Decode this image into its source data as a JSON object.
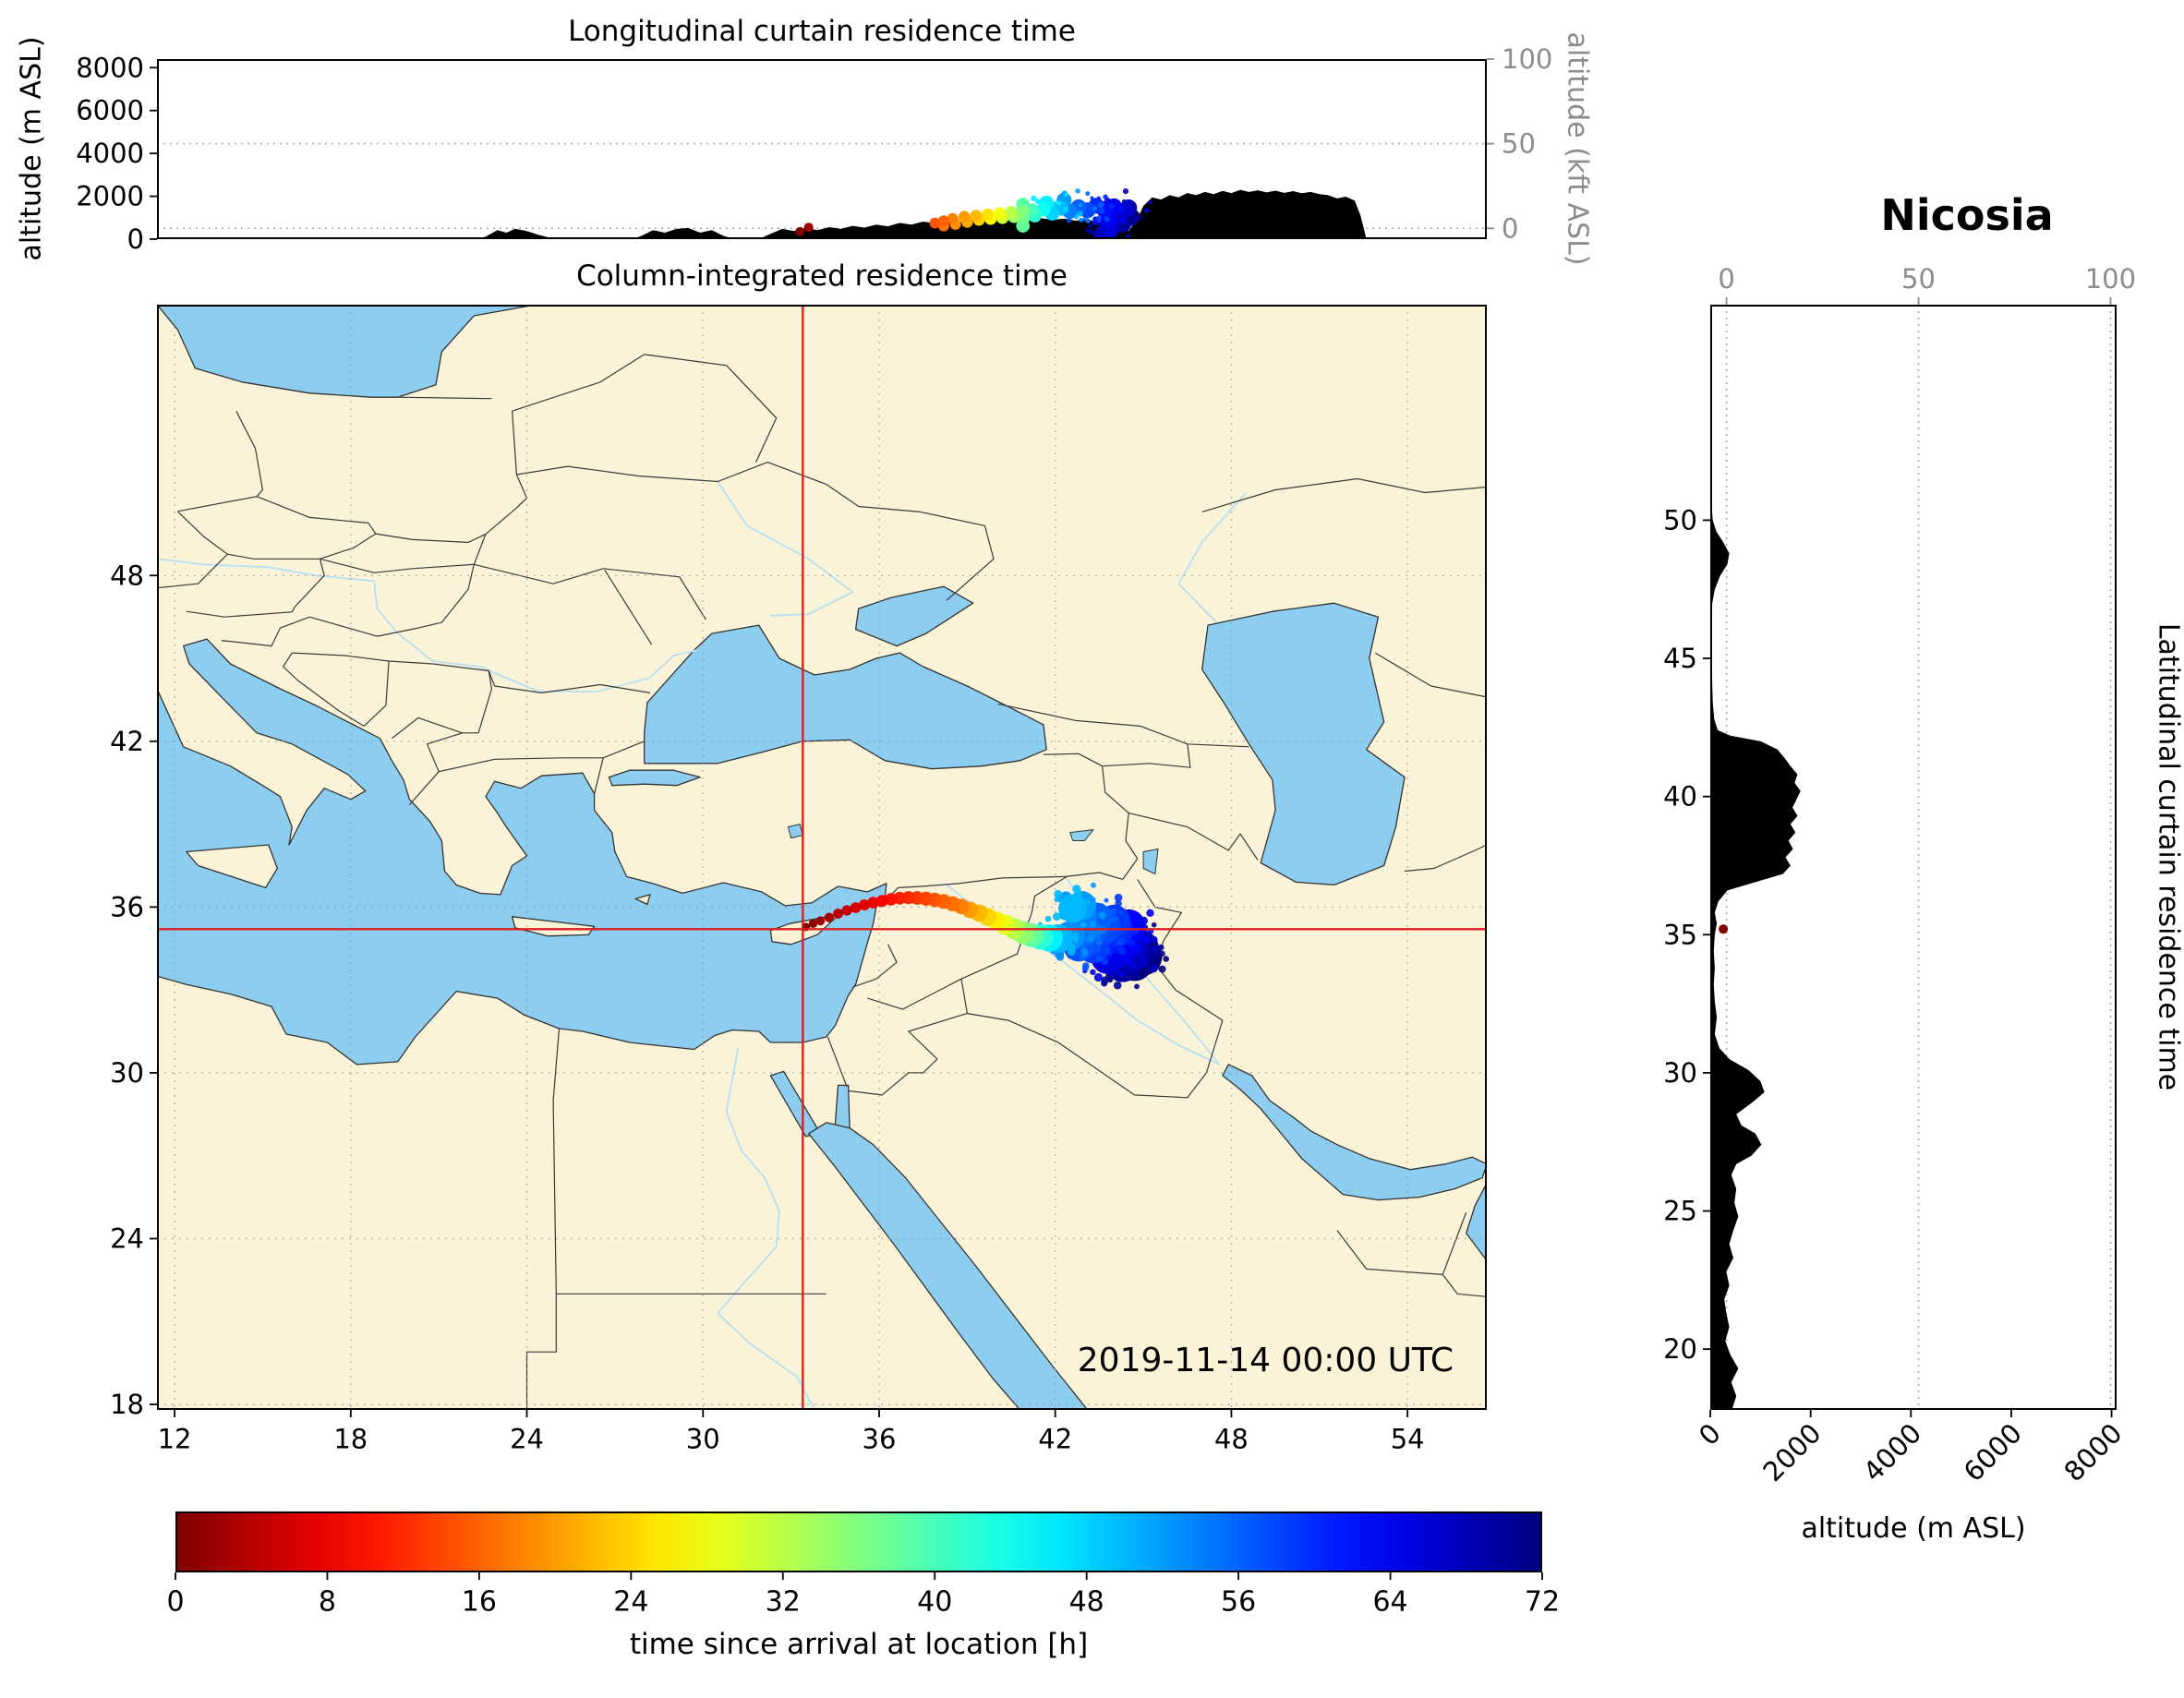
{
  "title": "Nicosia",
  "chart_data": {
    "type": "heatmap",
    "subject": "back-trajectory residence time",
    "timestamp": "2019-11-14 00:00 UTC",
    "receptor": {
      "name": "Nicosia",
      "lon": 33.4,
      "lat": 35.2
    },
    "colorbar": {
      "label": "time since arrival at location [h]",
      "ticks": [
        0,
        8,
        16,
        24,
        32,
        40,
        48,
        56,
        64,
        72
      ],
      "min": 0,
      "max": 72,
      "colormap": "jet_r"
    },
    "map": {
      "title": "Column-integrated residence time",
      "lon_range": [
        11.4,
        56.7
      ],
      "lat_range": [
        17.8,
        57.8
      ],
      "lon_ticks": [
        12,
        18,
        24,
        30,
        36,
        42,
        48,
        54
      ],
      "lat_ticks": [
        18,
        24,
        30,
        36,
        42,
        48
      ],
      "grid": true,
      "plume": [
        [
          33.5,
          35.28,
          0
        ],
        [
          33.75,
          35.4,
          1
        ],
        [
          34.0,
          35.5,
          2
        ],
        [
          34.3,
          35.62,
          3
        ],
        [
          34.6,
          35.76,
          4
        ],
        [
          34.9,
          35.88,
          5
        ],
        [
          35.2,
          35.98,
          6
        ],
        [
          35.5,
          36.08,
          7
        ],
        [
          35.8,
          36.16,
          8
        ],
        [
          36.1,
          36.22,
          9
        ],
        [
          36.4,
          36.28,
          10
        ],
        [
          36.7,
          36.32,
          11
        ],
        [
          37.0,
          36.34,
          12
        ],
        [
          37.3,
          36.33,
          13
        ],
        [
          37.6,
          36.3,
          14
        ],
        [
          37.9,
          36.26,
          15
        ],
        [
          38.2,
          36.2,
          16
        ],
        [
          38.5,
          36.12,
          17
        ],
        [
          38.8,
          36.02,
          18
        ],
        [
          39.1,
          35.9,
          20
        ],
        [
          39.4,
          35.78,
          22
        ],
        [
          39.7,
          35.64,
          24
        ],
        [
          40.0,
          35.5,
          26
        ],
        [
          40.3,
          35.36,
          29
        ],
        [
          40.6,
          35.22,
          32
        ],
        [
          40.9,
          35.08,
          35
        ],
        [
          41.2,
          34.98,
          38
        ],
        [
          41.5,
          34.92,
          42
        ],
        [
          41.8,
          34.88,
          46
        ],
        [
          42.1,
          34.86,
          50
        ],
        [
          42.6,
          35.95,
          50
        ],
        [
          42.9,
          36.05,
          52
        ],
        [
          42.5,
          34.95,
          53
        ],
        [
          42.9,
          35.55,
          54
        ],
        [
          42.9,
          35.1,
          55
        ],
        [
          43.4,
          35.6,
          56
        ],
        [
          43.3,
          35.2,
          57
        ],
        [
          42.8,
          34.6,
          57
        ],
        [
          43.7,
          35.25,
          58
        ],
        [
          44.0,
          35.5,
          59
        ],
        [
          43.3,
          34.55,
          59
        ],
        [
          44.1,
          35.15,
          60
        ],
        [
          43.8,
          34.9,
          61
        ],
        [
          44.5,
          35.3,
          63
        ],
        [
          44.2,
          34.55,
          64
        ],
        [
          43.8,
          34.2,
          65
        ],
        [
          44.5,
          34.75,
          66
        ],
        [
          44.6,
          34.3,
          68
        ],
        [
          44.3,
          33.95,
          70
        ],
        [
          44.9,
          34.5,
          71
        ],
        [
          44.7,
          34.0,
          72
        ],
        [
          45.0,
          34.2,
          72
        ]
      ]
    },
    "longitudinal_curtain": {
      "title": "Longitudinal curtain residence time",
      "ylabel_left": "altitude (m ASL)",
      "ylabel_right": "altitude (kft ASL)",
      "alt_range_m": [
        0,
        8400
      ],
      "alt_ticks_m": [
        0,
        2000,
        4000,
        6000,
        8000
      ],
      "kft_ticks": [
        0,
        50,
        100
      ],
      "terrain_lon_m": [
        [
          11.4,
          0
        ],
        [
          22.3,
          0
        ],
        [
          22.6,
          120
        ],
        [
          23.0,
          420
        ],
        [
          23.3,
          300
        ],
        [
          23.6,
          480
        ],
        [
          24.0,
          380
        ],
        [
          24.4,
          200
        ],
        [
          24.8,
          60
        ],
        [
          25.1,
          0
        ],
        [
          27.6,
          0
        ],
        [
          27.9,
          150
        ],
        [
          28.3,
          420
        ],
        [
          28.7,
          300
        ],
        [
          29.1,
          480
        ],
        [
          29.5,
          520
        ],
        [
          29.9,
          300
        ],
        [
          30.3,
          420
        ],
        [
          30.7,
          150
        ],
        [
          31.1,
          0
        ],
        [
          31.9,
          0
        ],
        [
          32.3,
          250
        ],
        [
          32.7,
          480
        ],
        [
          33.1,
          380
        ],
        [
          33.5,
          520
        ],
        [
          33.9,
          420
        ],
        [
          34.3,
          560
        ],
        [
          34.7,
          480
        ],
        [
          35.1,
          620
        ],
        [
          35.5,
          540
        ],
        [
          35.9,
          680
        ],
        [
          36.3,
          600
        ],
        [
          36.7,
          760
        ],
        [
          37.1,
          680
        ],
        [
          37.5,
          820
        ],
        [
          37.9,
          740
        ],
        [
          38.3,
          860
        ],
        [
          38.7,
          780
        ],
        [
          39.1,
          900
        ],
        [
          39.5,
          820
        ],
        [
          39.9,
          940
        ],
        [
          40.3,
          860
        ],
        [
          40.7,
          960
        ],
        [
          41.1,
          880
        ],
        [
          41.5,
          980
        ],
        [
          41.9,
          900
        ],
        [
          42.3,
          960
        ],
        [
          42.7,
          860
        ],
        [
          43.1,
          920
        ],
        [
          43.5,
          780
        ],
        [
          43.9,
          840
        ],
        [
          44.2,
          600
        ],
        [
          44.5,
          380
        ],
        [
          44.8,
          950
        ],
        [
          45.0,
          1550
        ],
        [
          45.3,
          1950
        ],
        [
          45.6,
          1850
        ],
        [
          45.9,
          2050
        ],
        [
          46.2,
          1950
        ],
        [
          46.5,
          2150
        ],
        [
          46.8,
          2050
        ],
        [
          47.1,
          2200
        ],
        [
          47.4,
          2100
        ],
        [
          47.7,
          2250
        ],
        [
          48.0,
          2150
        ],
        [
          48.3,
          2300
        ],
        [
          48.6,
          2200
        ],
        [
          48.9,
          2280
        ],
        [
          49.2,
          2180
        ],
        [
          49.5,
          2260
        ],
        [
          49.8,
          2160
        ],
        [
          50.1,
          2240
        ],
        [
          50.4,
          2140
        ],
        [
          50.7,
          2200
        ],
        [
          51.0,
          2100
        ],
        [
          51.3,
          2050
        ],
        [
          51.6,
          1900
        ],
        [
          51.9,
          1980
        ],
        [
          52.2,
          1800
        ],
        [
          52.4,
          1100
        ],
        [
          52.6,
          0
        ],
        [
          56.7,
          0
        ]
      ],
      "plume": [
        [
          37.9,
          750,
          15
        ],
        [
          38.2,
          850,
          16
        ],
        [
          38.2,
          620,
          17
        ],
        [
          38.5,
          950,
          18
        ],
        [
          38.6,
          700,
          19
        ],
        [
          38.9,
          1050,
          20
        ],
        [
          39.0,
          800,
          21
        ],
        [
          39.3,
          1100,
          22
        ],
        [
          39.4,
          900,
          24
        ],
        [
          39.7,
          1150,
          25
        ],
        [
          39.8,
          950,
          27
        ],
        [
          40.1,
          1200,
          28
        ],
        [
          40.2,
          1000,
          30
        ],
        [
          40.5,
          1250,
          32
        ],
        [
          40.6,
          1050,
          34
        ],
        [
          40.9,
          1300,
          36
        ],
        [
          40.9,
          950,
          37
        ],
        [
          40.9,
          620,
          38
        ],
        [
          40.9,
          1620,
          39
        ],
        [
          41.2,
          1350,
          40
        ],
        [
          41.3,
          1100,
          42
        ],
        [
          41.6,
          1400,
          44
        ],
        [
          41.7,
          1700,
          46
        ],
        [
          41.9,
          1200,
          48
        ],
        [
          42.2,
          1450,
          50
        ],
        [
          42.3,
          1820,
          52
        ],
        [
          42.5,
          1300,
          54
        ],
        [
          42.8,
          1500,
          56
        ],
        [
          43.1,
          1350,
          58
        ],
        [
          43.4,
          1560,
          60
        ],
        [
          43.7,
          1400,
          62
        ],
        [
          43.8,
          900,
          64
        ],
        [
          43.9,
          480,
          66
        ],
        [
          44.0,
          1520,
          64
        ],
        [
          44.3,
          1300,
          66
        ],
        [
          44.5,
          1460,
          68
        ],
        [
          44.3,
          700,
          70
        ],
        [
          44.6,
          1020,
          72
        ],
        [
          43.6,
          240,
          68
        ],
        [
          43.8,
          160,
          70
        ]
      ],
      "receptor_marks": [
        [
          33.3,
          350,
          0
        ],
        [
          33.6,
          550,
          2
        ]
      ]
    },
    "latitudinal_curtain": {
      "title": "Latitudinal curtain residence time",
      "xlabel": "altitude (m ASL)",
      "alt_range_m": [
        0,
        8100
      ],
      "alt_ticks_m": [
        0,
        2000,
        4000,
        6000,
        8000
      ],
      "kft_ticks": [
        0,
        50,
        100
      ],
      "lat_ticks": [
        20,
        25,
        30,
        35,
        40,
        45,
        50
      ],
      "terrain_lat_m": [
        [
          17.8,
          430
        ],
        [
          18.3,
          520
        ],
        [
          18.8,
          420
        ],
        [
          19.3,
          560
        ],
        [
          19.8,
          400
        ],
        [
          20.3,
          300
        ],
        [
          20.8,
          380
        ],
        [
          21.3,
          320
        ],
        [
          21.8,
          280
        ],
        [
          22.3,
          380
        ],
        [
          22.8,
          320
        ],
        [
          23.3,
          460
        ],
        [
          23.8,
          380
        ],
        [
          24.3,
          460
        ],
        [
          24.8,
          560
        ],
        [
          25.3,
          480
        ],
        [
          25.8,
          520
        ],
        [
          26.3,
          420
        ],
        [
          26.7,
          520
        ],
        [
          27.0,
          820
        ],
        [
          27.4,
          1020
        ],
        [
          27.8,
          900
        ],
        [
          28.1,
          620
        ],
        [
          28.5,
          520
        ],
        [
          28.9,
          820
        ],
        [
          29.3,
          1080
        ],
        [
          29.7,
          1000
        ],
        [
          30.1,
          760
        ],
        [
          30.5,
          380
        ],
        [
          30.9,
          180
        ],
        [
          31.4,
          90
        ],
        [
          32.0,
          130
        ],
        [
          32.6,
          90
        ],
        [
          33.2,
          70
        ],
        [
          33.8,
          90
        ],
        [
          34.4,
          70
        ],
        [
          35.0,
          90
        ],
        [
          35.4,
          130
        ],
        [
          35.8,
          90
        ],
        [
          36.2,
          160
        ],
        [
          36.6,
          340
        ],
        [
          36.9,
          900
        ],
        [
          37.2,
          1450
        ],
        [
          37.5,
          1600
        ],
        [
          37.8,
          1500
        ],
        [
          38.1,
          1650
        ],
        [
          38.4,
          1560
        ],
        [
          38.7,
          1700
        ],
        [
          39.0,
          1600
        ],
        [
          39.3,
          1740
        ],
        [
          39.6,
          1640
        ],
        [
          39.9,
          1720
        ],
        [
          40.2,
          1800
        ],
        [
          40.5,
          1680
        ],
        [
          40.8,
          1740
        ],
        [
          41.1,
          1600
        ],
        [
          41.4,
          1480
        ],
        [
          41.7,
          1340
        ],
        [
          42.0,
          1000
        ],
        [
          42.2,
          400
        ],
        [
          42.4,
          150
        ],
        [
          42.8,
          80
        ],
        [
          43.4,
          50
        ],
        [
          44.0,
          40
        ],
        [
          45.0,
          30
        ],
        [
          46.0,
          25
        ],
        [
          47.0,
          40
        ],
        [
          47.5,
          90
        ],
        [
          48.0,
          200
        ],
        [
          48.4,
          340
        ],
        [
          48.8,
          380
        ],
        [
          49.2,
          260
        ],
        [
          49.6,
          120
        ],
        [
          50.0,
          50
        ],
        [
          50.6,
          25
        ],
        [
          51.5,
          15
        ],
        [
          53.0,
          10
        ],
        [
          55.0,
          5
        ],
        [
          57.8,
          0
        ]
      ],
      "receptor_marks": [
        [
          35.2,
          260,
          0
        ]
      ]
    }
  }
}
